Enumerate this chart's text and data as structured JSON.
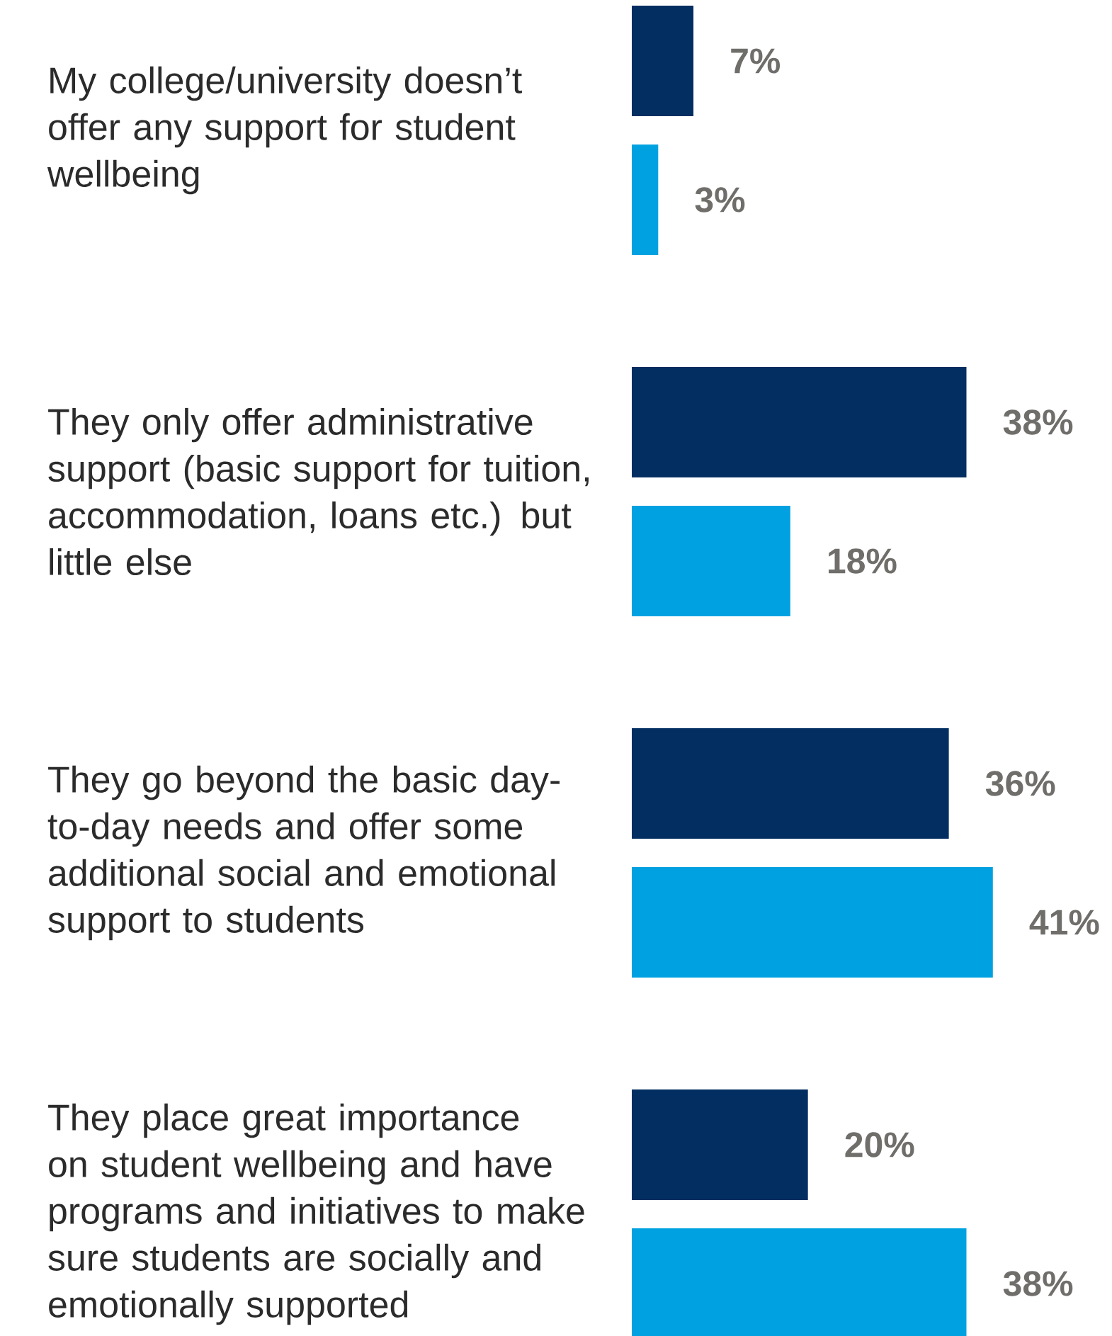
{
  "chart_data": {
    "type": "bar",
    "orientation": "horizontal",
    "tick_labels": "y",
    "categories": [
      "My college/university doesn’t offer any support for student wellbeing",
      "They only offer administrative support (basic support for tuition, accommodation, loans etc.) but little else",
      "They go beyond the basic day-to-day needs and offer some additional social and emotional support to students",
      "They place great importance on student wellbeing and have programs and initiatives to make sure students are socially and emotionally supported"
    ],
    "series": [
      {
        "color": "#032e61",
        "values": [
          7,
          38,
          36,
          20
        ],
        "value_labels": [
          "7%",
          "38%",
          "36%",
          "20%"
        ]
      },
      {
        "color": "#00a1e0",
        "values": [
          3,
          18,
          41,
          38
        ],
        "value_labels": [
          "3%",
          "18%",
          "41%",
          "38%"
        ]
      }
    ]
  }
}
